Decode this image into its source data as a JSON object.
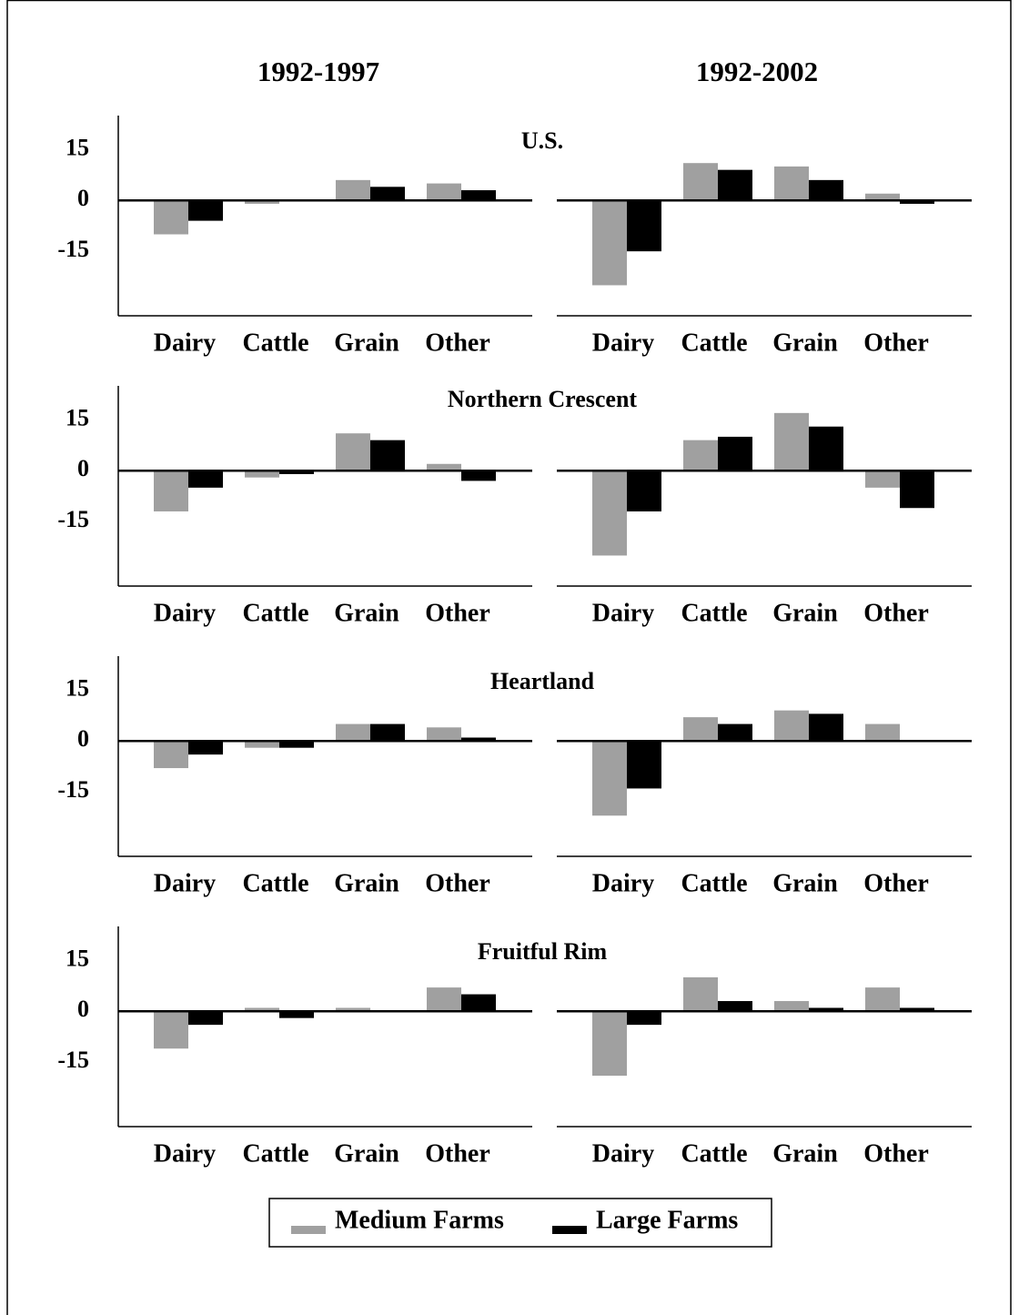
{
  "chart_data": {
    "type": "bar",
    "columns": [
      "1992-1997",
      "1992-2002"
    ],
    "categories": [
      "Dairy",
      "Cattle",
      "Grain",
      "Other"
    ],
    "ylim": [
      -34,
      25
    ],
    "yticks": [
      15,
      0,
      -15
    ],
    "series": [
      {
        "name": "Medium Farms",
        "color": "#a0a0a0"
      },
      {
        "name": "Large Farms",
        "color": "#000000"
      }
    ],
    "regions": [
      {
        "title": "U.S.",
        "values": [
          [
            [
              -10,
              -1,
              6,
              5
            ],
            [
              -6,
              0,
              4,
              3
            ]
          ],
          [
            [
              -25,
              11,
              10,
              2
            ],
            [
              -15,
              9,
              6,
              -1
            ]
          ]
        ]
      },
      {
        "title": "Northern Crescent",
        "values": [
          [
            [
              -12,
              -2,
              11,
              2
            ],
            [
              -5,
              -1,
              9,
              -3
            ]
          ],
          [
            [
              -25,
              9,
              17,
              -5
            ],
            [
              -12,
              10,
              13,
              -11
            ]
          ]
        ]
      },
      {
        "title": "Heartland",
        "values": [
          [
            [
              -8,
              -2,
              5,
              4
            ],
            [
              -4,
              -2,
              5,
              1
            ]
          ],
          [
            [
              -22,
              7,
              9,
              5
            ],
            [
              -14,
              5,
              8,
              0
            ]
          ]
        ]
      },
      {
        "title": "Fruitful Rim",
        "values": [
          [
            [
              -11,
              1,
              1,
              7
            ],
            [
              -4,
              -2,
              0,
              5
            ]
          ],
          [
            [
              -19,
              10,
              3,
              7
            ],
            [
              -4,
              3,
              1,
              1
            ]
          ]
        ]
      }
    ]
  }
}
